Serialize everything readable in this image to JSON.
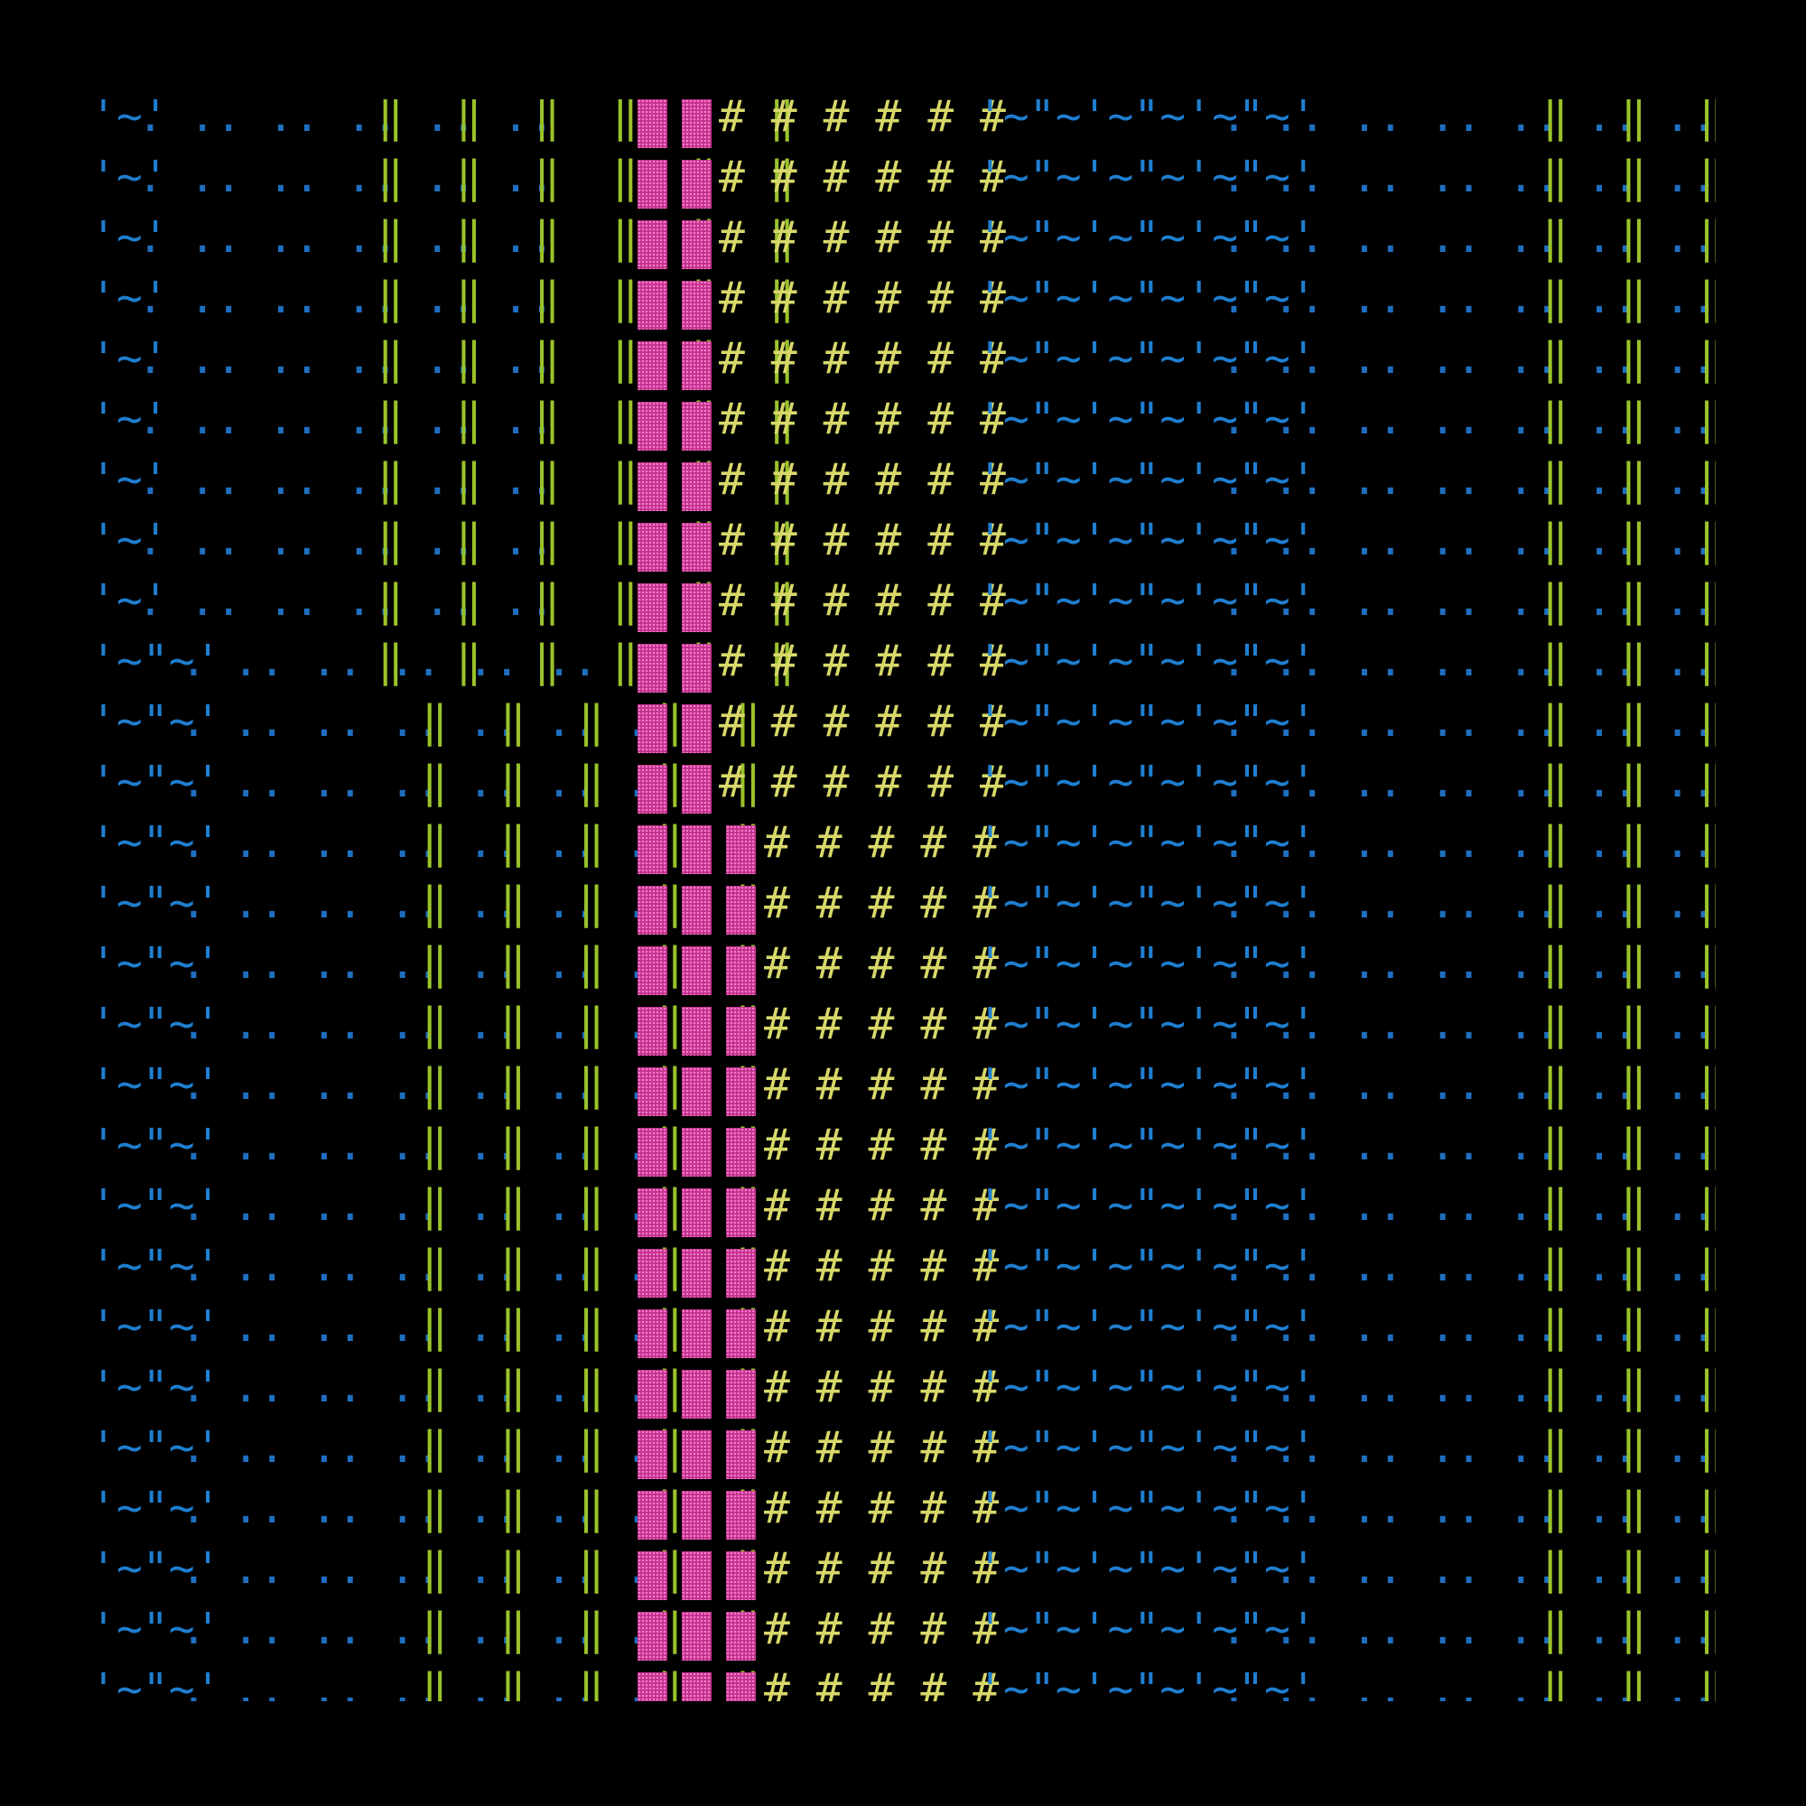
{
  "screen": {
    "background": "#000000",
    "row_count": 27,
    "colors": {
      "blue_text": "#1f7fd0",
      "blue_dots": "#1f6fc0",
      "green_bars": "#9ac32b",
      "pink_blocks": "#c2338d",
      "yellow_hash": "#d8d86a"
    },
    "glyphs": {
      "fill_block": "▒"
    },
    "segments": {
      "prefix_a": "'~'",
      "prefix_b": "'~\"~'",
      "dots_a": ". .. .. .. .. ..",
      "dots_b": ". .. .. .. .. .. ..",
      "bars_a": "‖  ‖  ‖  ‖  ‖  ‖",
      "bars_b": "‖  ‖  ‖  ‖  ‖",
      "hashes_a": "# # # # # #",
      "hashes_b": "# # # # #",
      "tilde_group": "'~\"~'~\"~'~\"~'",
      "right_dots": ". .. .. .. .. .. ..",
      "right_bars": "‖  ‖  ‖  ‖"
    }
  }
}
